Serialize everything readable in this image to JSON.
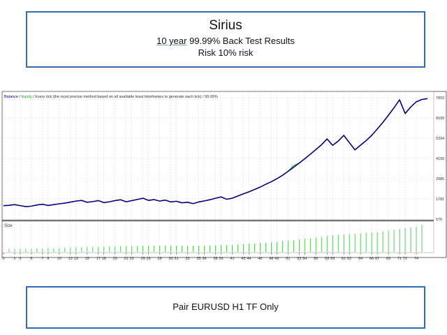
{
  "header": {
    "title": "Sirius",
    "line2_underlined": "10 year",
    "line2_rest": " 99.99% Back Test Results",
    "line3": "Risk 10% risk"
  },
  "footer": {
    "text": "Pair EURUSD H1 TF Only"
  },
  "chart_data": {
    "type": "line",
    "legend": {
      "balance": "Balance",
      "separator": " / ",
      "equity": "Equity",
      "note": " / Every tick (the most precise method based on all available least timeframes to generate each tick) / 99.99%"
    },
    "sub_label": "Size",
    "colors": {
      "balance": "#000080",
      "equity": "#22aa22",
      "size_bars": "#33bb33",
      "grid": "#c8c8c8"
    },
    "ylim": [
      576,
      7803
    ],
    "yticks": [
      "7803",
      "6599",
      "5394",
      "4190",
      "2985",
      "1781",
      "576"
    ],
    "xlim": [
      0,
      77
    ],
    "xticks": [
      "0",
      "2",
      "3",
      "5",
      "7",
      "8",
      "10",
      "12",
      "13",
      "15",
      "17",
      "18",
      "20",
      "22",
      "23",
      "25",
      "26",
      "28",
      "30",
      "31",
      "33",
      "35",
      "36",
      "38",
      "39",
      "41",
      "43",
      "44",
      "46",
      "48",
      "49",
      "51",
      "53",
      "54",
      "56",
      "58",
      "59",
      "61",
      "62",
      "64",
      "66",
      "67",
      "69",
      "71",
      "72",
      "74"
    ],
    "balance": {
      "x": [
        0,
        1,
        2,
        3,
        4,
        5,
        6,
        7,
        8,
        9,
        10,
        11,
        12,
        13,
        14,
        15,
        16,
        17,
        18,
        19,
        20,
        21,
        22,
        23,
        24,
        25,
        26,
        27,
        28,
        29,
        30,
        31,
        32,
        33,
        34,
        35,
        36,
        37,
        38,
        39,
        40,
        41,
        42,
        43,
        44,
        45,
        46,
        47,
        48,
        49,
        50,
        51,
        52,
        53,
        54,
        55,
        56,
        57,
        58,
        59,
        60,
        61,
        62,
        63,
        64,
        65,
        66,
        67,
        68,
        69,
        70,
        71,
        72,
        73,
        74,
        75,
        76
      ],
      "y": [
        1380,
        1400,
        1440,
        1380,
        1320,
        1350,
        1420,
        1460,
        1390,
        1440,
        1490,
        1530,
        1590,
        1650,
        1690,
        1580,
        1620,
        1680,
        1560,
        1610,
        1680,
        1730,
        1610,
        1680,
        1750,
        1820,
        1690,
        1740,
        1650,
        1710,
        1600,
        1640,
        1550,
        1580,
        1500,
        1600,
        1660,
        1730,
        1820,
        1900,
        1760,
        1820,
        1950,
        2080,
        2200,
        2340,
        2480,
        2650,
        2800,
        2980,
        3180,
        3420,
        3660,
        3910,
        4170,
        4440,
        4720,
        5000,
        5350,
        4970,
        5220,
        5560,
        5130,
        4700,
        4980,
        5250,
        5560,
        5940,
        6330,
        6760,
        7200,
        7680,
        6860,
        7250,
        7560,
        7700,
        7750
      ],
      "x_end": 75
    },
    "equity": {
      "x": [
        51,
        52,
        53
      ],
      "y": [
        3420,
        3760,
        3910
      ]
    },
    "size": {
      "x": [
        1,
        2,
        3,
        4,
        5,
        6,
        7,
        8,
        9,
        10,
        11,
        12,
        13,
        14,
        15,
        16,
        17,
        18,
        19,
        20,
        21,
        22,
        23,
        24,
        25,
        26,
        27,
        28,
        29,
        30,
        31,
        32,
        33,
        34,
        35,
        36,
        37,
        38,
        39,
        40,
        41,
        42,
        43,
        44,
        45,
        46,
        47,
        48,
        49,
        50,
        51,
        52,
        53,
        54,
        55,
        56,
        57,
        58,
        59,
        60,
        61,
        62,
        63,
        64,
        65,
        66,
        67,
        68,
        69,
        70,
        71,
        72,
        73,
        74,
        75
      ],
      "values": [
        0.8,
        0.8,
        0.8,
        0.8,
        0.8,
        0.9,
        0.9,
        1.0,
        1.0,
        1.0,
        1.1,
        1.1,
        1.2,
        1.2,
        1.3,
        1.3,
        1.3,
        1.4,
        1.4,
        1.4,
        1.5,
        1.5,
        1.5,
        1.5,
        1.6,
        1.6,
        1.6,
        1.6,
        1.6,
        1.6,
        1.6,
        1.6,
        1.6,
        1.6,
        1.6,
        1.6,
        1.7,
        1.7,
        1.8,
        1.8,
        1.8,
        1.9,
        2.0,
        2.1,
        2.2,
        2.3,
        2.4,
        2.5,
        2.6,
        2.8,
        2.9,
        3.0,
        3.2,
        3.4,
        3.5,
        3.7,
        3.9,
        4.1,
        4.3,
        4.4,
        4.5,
        4.6,
        4.7,
        4.8,
        4.9,
        5.0,
        5.1,
        5.3,
        5.5,
        5.7,
        5.9,
        6.1,
        6.3,
        6.5,
        7.0
      ]
    }
  }
}
